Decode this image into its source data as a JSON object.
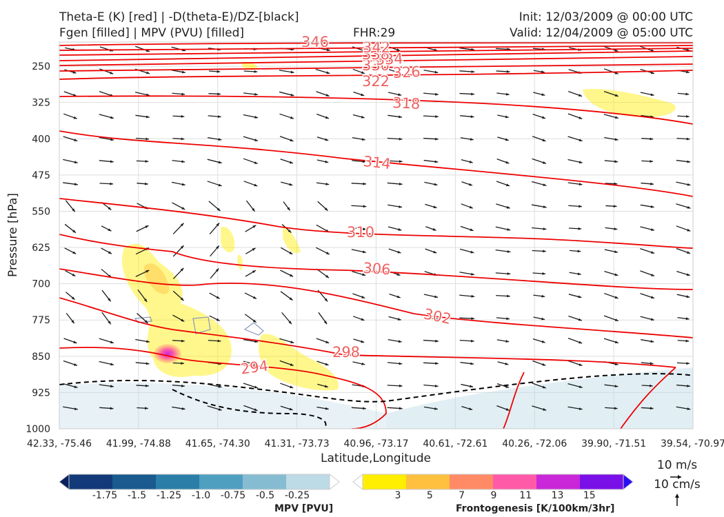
{
  "header": {
    "title_line1": "Theta-E (K) [red] | -D(theta-E)/DZ-[black]",
    "title_line2": "Fgen [filled] | MPV (PVU) [filled]",
    "fhr": "FHR:29",
    "init": "Init: 12/03/2009 @ 00:00 UTC",
    "valid": "Valid: 12/04/2009 @ 05:00 UTC"
  },
  "chart_data": {
    "type": "cross-section",
    "ylabel": "Pressure [hPa]",
    "xlabel": "Latitude,Longitude",
    "y_ticks": [
      250,
      325,
      400,
      475,
      550,
      625,
      700,
      775,
      850,
      925,
      1000
    ],
    "ylim": [
      1000,
      200
    ],
    "y_scale": "linear, inverted",
    "x_ticks": [
      "42.33, -75.46",
      "41.99, -74.88",
      "41.65, -74.30",
      "41.31, -73.73",
      "40.96, -73.17",
      "40.61, -72.61",
      "40.26, -72.06",
      "39.90, -71.51",
      "39.54, -70.97"
    ],
    "grid": true,
    "theta_e_contours": {
      "color": "#ee0000",
      "label_color": "#f06060",
      "levels": [
        294,
        298,
        302,
        306,
        310,
        314,
        318,
        322,
        326,
        330,
        334,
        338,
        342,
        346
      ]
    },
    "vector_scale": {
      "horizontal": "10 m/s",
      "vertical": "10 cm/s"
    },
    "colorbars": [
      {
        "label": "MPV [PVU]",
        "tick_labels": [
          "-1.75",
          "-1.5",
          "-1.25",
          "-1.0",
          "-0.75",
          "-0.5",
          "-0.25"
        ],
        "colors": [
          "#08205e",
          "#133a78",
          "#1a5a8e",
          "#2a7ea8",
          "#4f9fc0",
          "#86bcd2",
          "#bcdbe6",
          "#ffffff"
        ]
      },
      {
        "label": "Frontogenesis [K/100km/3hr]",
        "tick_labels": [
          "3",
          "5",
          "7",
          "9",
          "11",
          "13",
          "15"
        ],
        "colors": [
          "#ffffff",
          "#ffee00",
          "#ffc040",
          "#ff8a66",
          "#ff5aa8",
          "#c828d8",
          "#7a10e8",
          "#2a10f0"
        ]
      }
    ]
  }
}
